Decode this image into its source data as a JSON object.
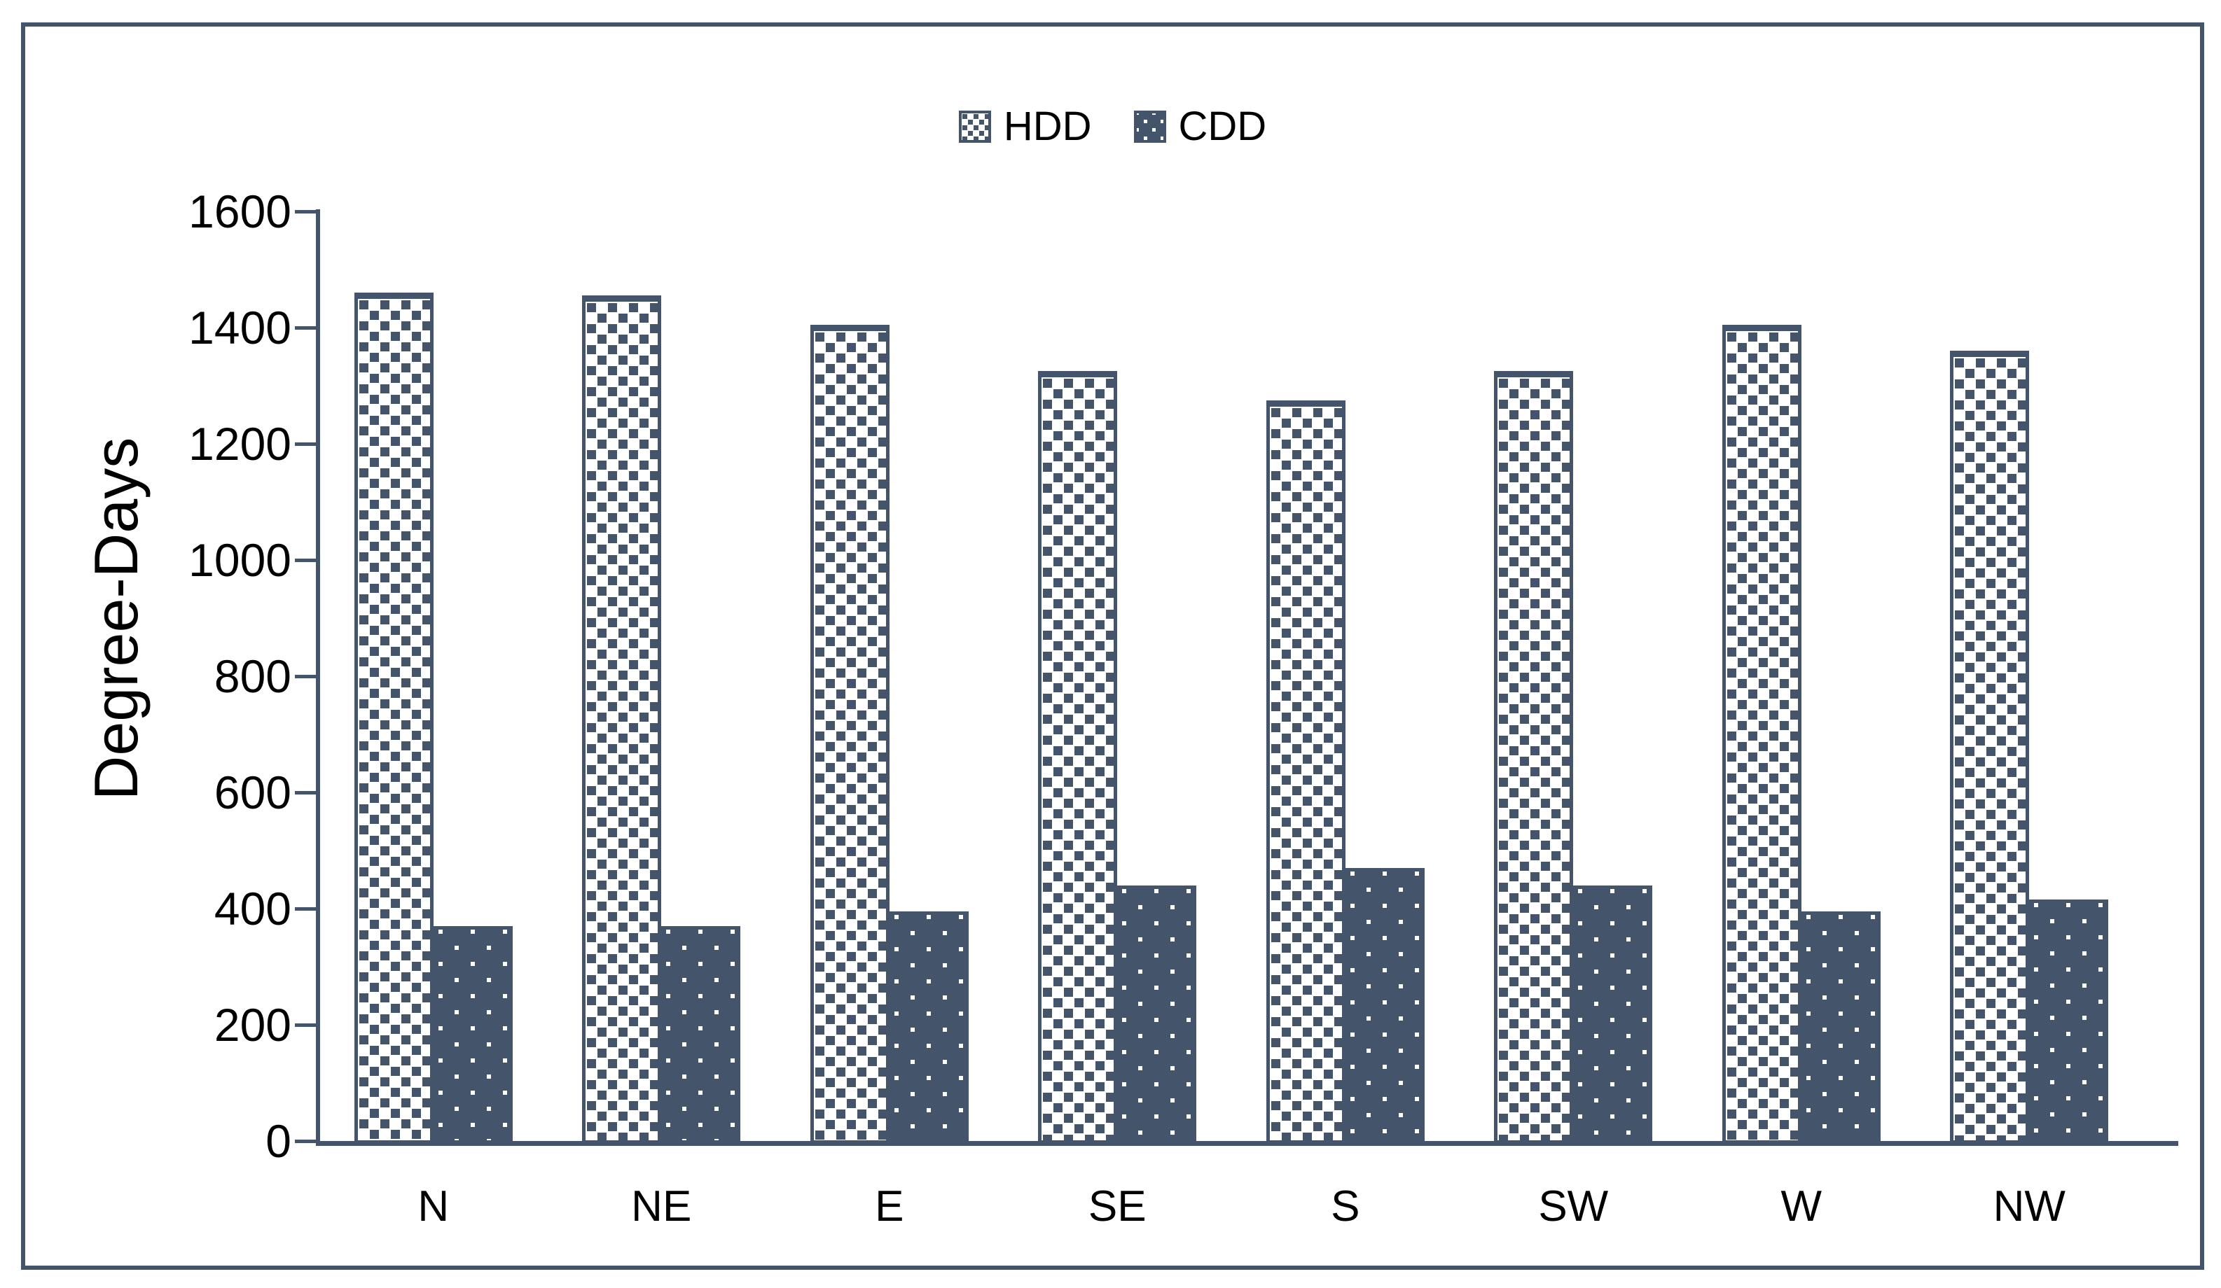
{
  "figure": {
    "background": "#ffffff",
    "border_color": "#44546a"
  },
  "legend": {
    "position": "top-center",
    "items": [
      {
        "label": "HDD",
        "swatch": "checker-squares-pattern"
      },
      {
        "label": "CDD",
        "swatch": "solid-with-white-dots-pattern"
      }
    ]
  },
  "chart_data": {
    "type": "bar",
    "title": "",
    "categories": [
      "N",
      "NE",
      "E",
      "SE",
      "S",
      "SW",
      "W",
      "NW"
    ],
    "series": [
      {
        "name": "HDD",
        "pattern": "checker-squares",
        "values": [
          1465,
          1460,
          1410,
          1330,
          1280,
          1330,
          1410,
          1365
        ]
      },
      {
        "name": "CDD",
        "pattern": "white-dots-on-solid",
        "values": [
          375,
          375,
          400,
          445,
          475,
          445,
          400,
          420
        ]
      }
    ],
    "xlabel": "",
    "ylabel": "Degree-Days",
    "ylim": [
      0,
      1600
    ],
    "yticks": [
      0,
      200,
      400,
      600,
      800,
      1000,
      1200,
      1400,
      1600
    ],
    "grid": false,
    "legend_position": "top-center",
    "bar_color": "#44546a"
  }
}
